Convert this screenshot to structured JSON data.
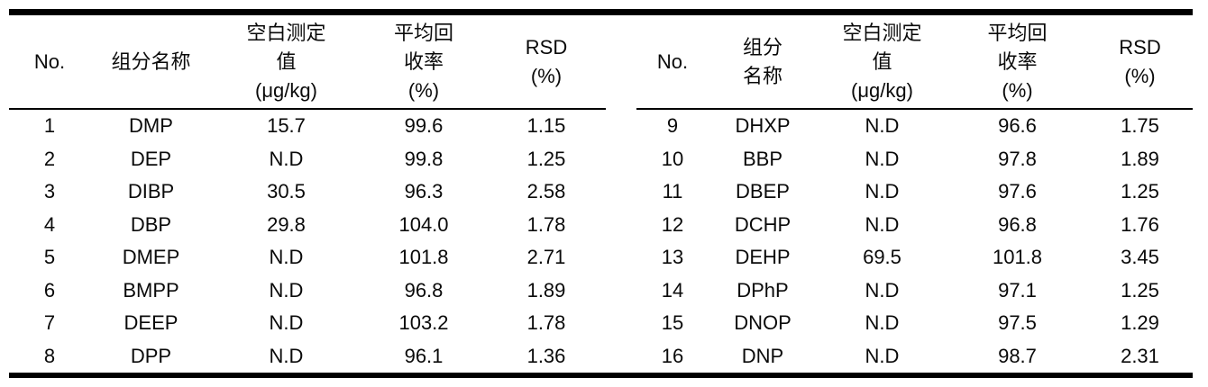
{
  "page": {
    "background_color": "#ffffff",
    "text_color": "#000000",
    "rule_color": "#000000"
  },
  "header": {
    "no": "No.",
    "name": "组分名称",
    "name_l1": "组分",
    "name_l2": "名称",
    "blank_l1": "空白测定",
    "blank_l2": "值",
    "blank_l3": "(μg/kg)",
    "recovery_l1": "平均回",
    "recovery_l2": "收率",
    "recovery_l3": "(%)",
    "rsd_l1": "RSD",
    "rsd_l2": "(%)"
  },
  "rows": {
    "left": [
      {
        "no": "1",
        "name": "DMP",
        "blank": "15.7",
        "recovery": "99.6",
        "rsd": "1.15"
      },
      {
        "no": "2",
        "name": "DEP",
        "blank": "N.D",
        "recovery": "99.8",
        "rsd": "1.25"
      },
      {
        "no": "3",
        "name": "DIBP",
        "blank": "30.5",
        "recovery": "96.3",
        "rsd": "2.58"
      },
      {
        "no": "4",
        "name": "DBP",
        "blank": "29.8",
        "recovery": "104.0",
        "rsd": "1.78"
      },
      {
        "no": "5",
        "name": "DMEP",
        "blank": "N.D",
        "recovery": "101.8",
        "rsd": "2.71"
      },
      {
        "no": "6",
        "name": "BMPP",
        "blank": "N.D",
        "recovery": "96.8",
        "rsd": "1.89"
      },
      {
        "no": "7",
        "name": "DEEP",
        "blank": "N.D",
        "recovery": "103.2",
        "rsd": "1.78"
      },
      {
        "no": "8",
        "name": "DPP",
        "blank": "N.D",
        "recovery": "96.1",
        "rsd": "1.36"
      }
    ],
    "right": [
      {
        "no": "9",
        "name": "DHXP",
        "blank": "N.D",
        "recovery": "96.6",
        "rsd": "1.75"
      },
      {
        "no": "10",
        "name": "BBP",
        "blank": "N.D",
        "recovery": "97.8",
        "rsd": "1.89"
      },
      {
        "no": "11",
        "name": "DBEP",
        "blank": "N.D",
        "recovery": "97.6",
        "rsd": "1.25"
      },
      {
        "no": "12",
        "name": "DCHP",
        "blank": "N.D",
        "recovery": "96.8",
        "rsd": "1.76"
      },
      {
        "no": "13",
        "name": "DEHP",
        "blank": "69.5",
        "recovery": "101.8",
        "rsd": "3.45"
      },
      {
        "no": "14",
        "name": "DPhP",
        "blank": "N.D",
        "recovery": "97.1",
        "rsd": "1.25"
      },
      {
        "no": "15",
        "name": "DNOP",
        "blank": "N.D",
        "recovery": "97.5",
        "rsd": "1.29"
      },
      {
        "no": "16",
        "name": "DNP",
        "blank": "N.D",
        "recovery": "98.7",
        "rsd": "2.31"
      }
    ]
  }
}
